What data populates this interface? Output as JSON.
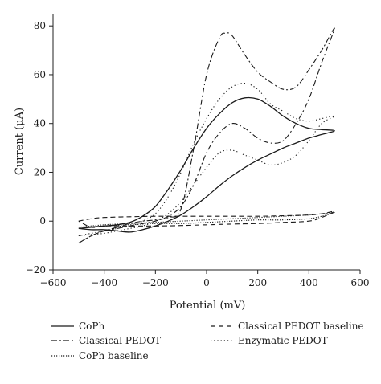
{
  "chart_data": {
    "type": "line",
    "xlabel": "Potential (mV)",
    "ylabel": "Current (μA)",
    "xlim": [
      -600,
      600
    ],
    "ylim": [
      -20,
      85
    ],
    "xticks": [
      "−600",
      "−400",
      "−200",
      "0",
      "200",
      "400",
      "600"
    ],
    "yticks": [
      "−20",
      "0",
      "20",
      "40",
      "60",
      "80"
    ],
    "xtick_values": [
      -600,
      -400,
      -200,
      0,
      200,
      400,
      600
    ],
    "ytick_values": [
      -20,
      0,
      20,
      40,
      60,
      80
    ],
    "legend_position": "bottom",
    "series": [
      {
        "name": "CoPh",
        "style": "solid",
        "x": [
          -500,
          -450,
          -400,
          -350,
          -300,
          -250,
          -200,
          -150,
          -100,
          -50,
          0,
          50,
          100,
          150,
          200,
          250,
          300,
          350,
          400,
          450,
          500,
          450,
          400,
          350,
          300,
          250,
          200,
          150,
          100,
          50,
          0,
          -50,
          -100,
          -150,
          -200,
          -250,
          -300,
          -350,
          -400,
          -450,
          -500
        ],
        "y": [
          -3,
          -2.5,
          -2,
          -1.5,
          -0.5,
          2,
          6,
          13,
          21,
          30,
          38,
          44,
          48.5,
          50.5,
          50,
          47,
          43,
          40,
          38,
          37.5,
          37,
          35.5,
          34,
          32,
          30,
          27.5,
          25,
          22,
          18.5,
          14.5,
          10,
          6,
          2.5,
          0,
          -2,
          -3.5,
          -4.5,
          -4,
          -3.5,
          -3.5,
          -3
        ]
      },
      {
        "name": "Classical PEDOT",
        "style": "dashdot",
        "x": [
          -500,
          -450,
          -400,
          -350,
          -300,
          -250,
          -200,
          -150,
          -100,
          -50,
          0,
          50,
          75,
          100,
          150,
          200,
          250,
          300,
          350,
          400,
          450,
          500,
          450,
          400,
          350,
          300,
          250,
          200,
          150,
          100,
          50,
          0,
          -50,
          -100,
          -150,
          -200,
          -250,
          -300,
          -350,
          -400,
          -450,
          -500
        ],
        "y": [
          -9,
          -6,
          -4,
          -2.5,
          -1,
          0,
          0.5,
          1.5,
          5,
          30,
          60,
          75,
          77,
          76,
          68,
          61,
          57,
          54,
          55,
          62,
          70,
          79,
          65,
          50,
          40,
          33,
          32,
          34,
          38,
          40,
          36,
          28,
          15,
          6,
          2,
          0,
          -1,
          -2,
          -3,
          -4,
          -6,
          -9
        ]
      },
      {
        "name": "CoPh baseline",
        "style": "dotted",
        "x": [
          -500,
          -400,
          -300,
          -200,
          -100,
          0,
          100,
          200,
          300,
          400,
          450,
          500,
          450,
          400,
          300,
          200,
          100,
          0,
          -100,
          -200,
          -300,
          -400,
          -500
        ],
        "y": [
          -2.5,
          -1.5,
          -1,
          -0.5,
          0,
          0.5,
          1,
          1.5,
          2,
          2.5,
          3,
          3.5,
          2,
          1,
          0.5,
          0.5,
          0,
          -0.5,
          -1,
          -1,
          -1.5,
          -2,
          -2.5
        ]
      },
      {
        "name": "Classical PEDOT baseline",
        "style": "dashed",
        "x": [
          -500,
          -450,
          -400,
          -300,
          -200,
          -100,
          0,
          100,
          200,
          300,
          400,
          450,
          500,
          450,
          400,
          300,
          200,
          100,
          0,
          -100,
          -200,
          -300,
          -400,
          -450,
          -500
        ],
        "y": [
          0,
          1,
          1.5,
          1.8,
          2,
          2,
          2,
          2,
          2,
          2.2,
          2.5,
          3,
          4,
          1.5,
          0,
          -0.5,
          -1,
          -1.2,
          -1.5,
          -1.8,
          -2,
          -2,
          -2,
          -2.5,
          0
        ]
      },
      {
        "name": "Enzymatic PEDOT",
        "style": "sparse-dotted",
        "x": [
          -500,
          -450,
          -400,
          -350,
          -300,
          -250,
          -200,
          -150,
          -100,
          -50,
          0,
          50,
          100,
          150,
          200,
          250,
          300,
          350,
          400,
          450,
          500,
          450,
          400,
          350,
          300,
          250,
          200,
          150,
          100,
          50,
          0,
          -50,
          -100,
          -150,
          -200,
          -250,
          -300,
          -350,
          -400,
          -450,
          -500
        ],
        "y": [
          -6,
          -5,
          -4,
          -3,
          -2,
          0,
          3,
          10,
          20,
          32,
          42,
          50,
          55,
          56.5,
          54,
          48,
          45,
          42,
          41,
          42,
          43,
          40,
          33,
          27,
          24,
          23,
          25,
          27,
          29,
          28,
          22,
          15,
          8,
          3,
          0,
          -2,
          -3,
          -4,
          -5,
          -5.5,
          -6
        ]
      }
    ]
  }
}
